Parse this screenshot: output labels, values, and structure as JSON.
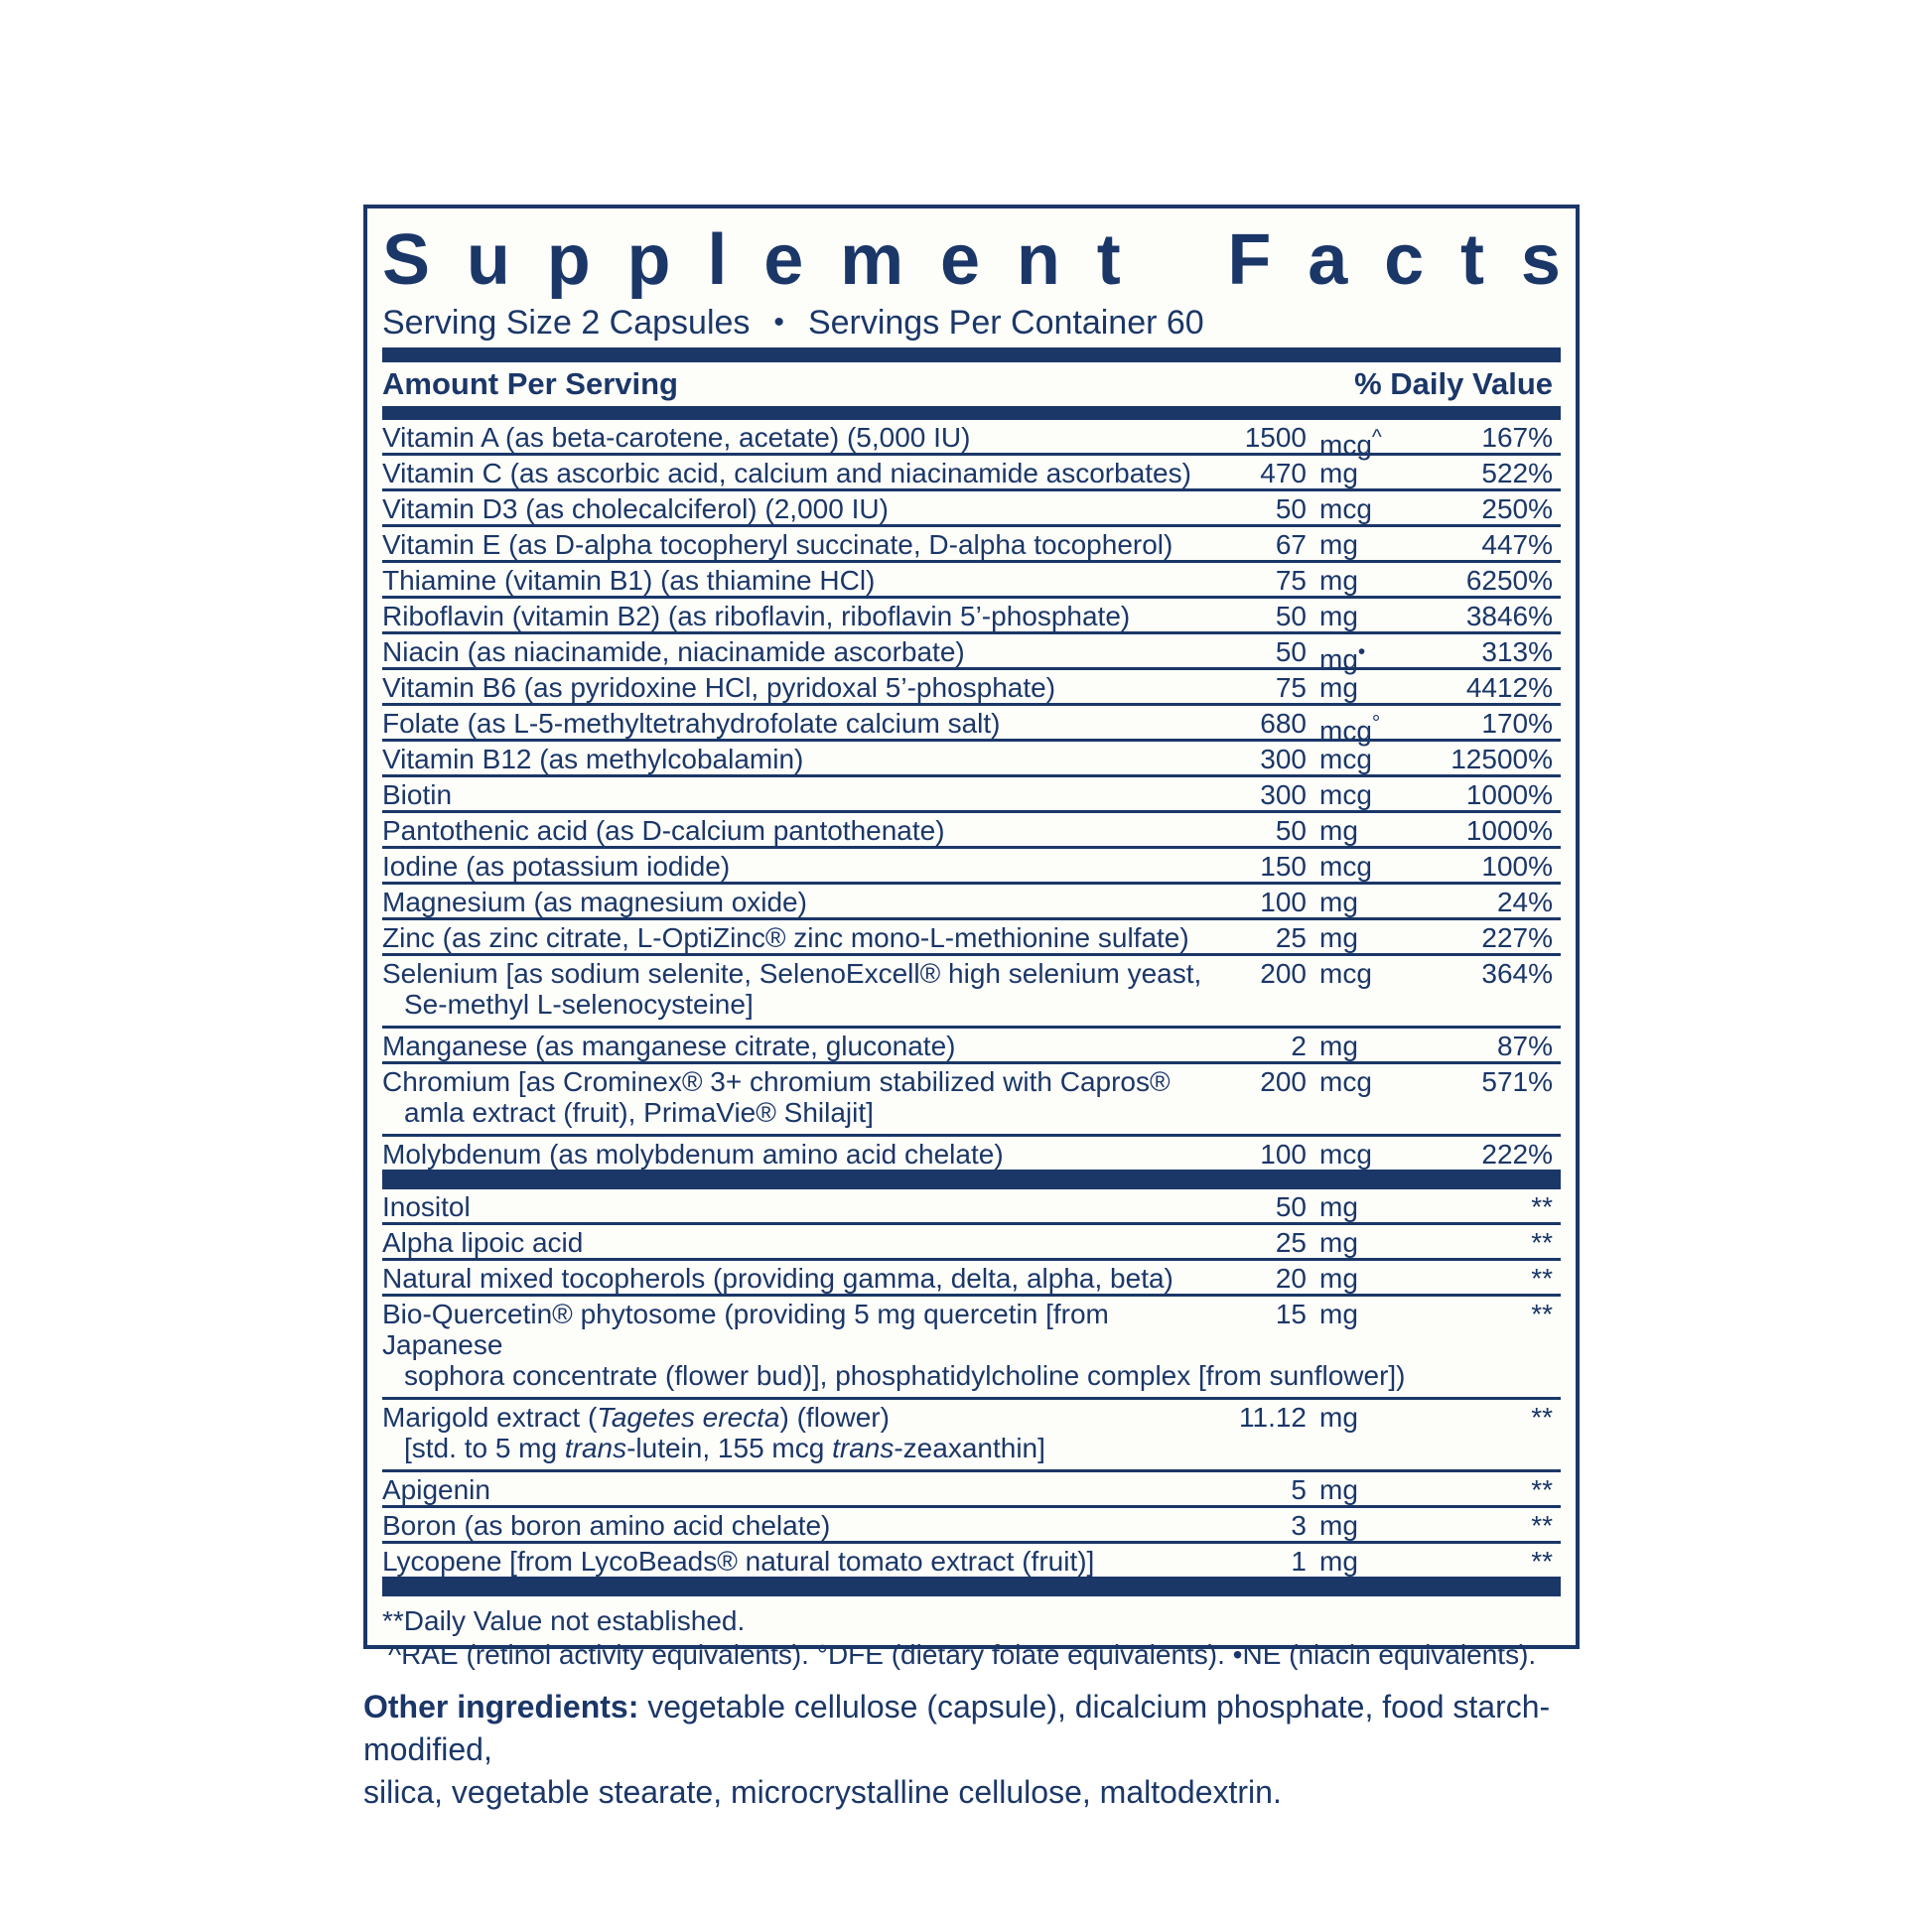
{
  "colors": {
    "navy": "#1b3768",
    "paper": "#fdfdfa"
  },
  "label": {
    "title": "Supplement Facts",
    "serving": {
      "size_text": "Serving Size 2 Capsules",
      "bullet": "•",
      "per_container_text": "Servings Per Container 60"
    },
    "header": {
      "left": "Amount Per Serving",
      "right": "% Daily Value"
    },
    "rows": [
      {
        "name": "Vitamin A (as beta-carotene, acetate) (5,000 IU)",
        "amount": "1500",
        "unit": "mcg",
        "mark": "^",
        "dv": "167%"
      },
      {
        "name": "Vitamin C (as ascorbic acid, calcium and niacinamide ascorbates)",
        "amount": "470",
        "unit": "mg",
        "dv": "522%"
      },
      {
        "name": "Vitamin D3 (as cholecalciferol) (2,000 IU)",
        "amount": "50",
        "unit": "mcg",
        "dv": "250%"
      },
      {
        "name": "Vitamin E (as D-alpha tocopheryl succinate, D-alpha tocopherol)",
        "amount": "67",
        "unit": "mg",
        "dv": "447%"
      },
      {
        "name": "Thiamine (vitamin B1) (as thiamine HCl)",
        "amount": "75",
        "unit": "mg",
        "dv": "6250%"
      },
      {
        "name": "Riboflavin (vitamin B2) (as riboflavin, riboflavin 5’-phosphate)",
        "amount": "50",
        "unit": "mg",
        "dv": "3846%"
      },
      {
        "name": "Niacin (as niacinamide, niacinamide ascorbate)",
        "amount": "50",
        "unit": "mg",
        "mark": "•",
        "dv": "313%"
      },
      {
        "name": "Vitamin B6 (as pyridoxine HCl, pyridoxal 5’-phosphate)",
        "amount": "75",
        "unit": "mg",
        "dv": "4412%"
      },
      {
        "name": "Folate (as L-5-methyltetrahydrofolate calcium salt)",
        "amount": "680",
        "unit": "mcg",
        "mark": "°",
        "dv": "170%"
      },
      {
        "name": "Vitamin B12 (as methylcobalamin)",
        "amount": "300",
        "unit": "mcg",
        "dv": "12500%"
      },
      {
        "name": "Biotin",
        "amount": "300",
        "unit": "mcg",
        "dv": "1000%"
      },
      {
        "name": "Pantothenic acid (as D-calcium pantothenate)",
        "amount": "50",
        "unit": "mg",
        "dv": "1000%"
      },
      {
        "name": "Iodine (as potassium iodide)",
        "amount": "150",
        "unit": "mcg",
        "dv": "100%"
      },
      {
        "name": "Magnesium (as magnesium oxide)",
        "amount": "100",
        "unit": "mg",
        "dv": "24%"
      },
      {
        "name": "Zinc (as zinc citrate, L-OptiZinc® zinc mono-L-methionine sulfate)",
        "amount": "25",
        "unit": "mg",
        "dv": "227%"
      },
      {
        "name": "Selenium [as sodium selenite, SelenoExcell® high selenium yeast,",
        "name2": "Se-methyl L-selenocysteine]",
        "amount": "200",
        "unit": "mcg",
        "dv": "364%"
      },
      {
        "name": "Manganese (as manganese citrate, gluconate)",
        "amount": "2",
        "unit": "mg",
        "dv": "87%"
      },
      {
        "name": "Chromium [as Crominex® 3+ chromium stabilized with Capros®",
        "name2": "amla extract (fruit), PrimaVie® Shilajit]",
        "amount": "200",
        "unit": "mcg",
        "dv": "571%"
      },
      {
        "name": "Molybdenum (as molybdenum amino acid chelate)",
        "amount": "100",
        "unit": "mcg",
        "dv": "222%"
      }
    ],
    "rows2": [
      {
        "name": "Inositol",
        "amount": "50",
        "unit": "mg",
        "dv": "**"
      },
      {
        "name": "Alpha lipoic acid",
        "amount": "25",
        "unit": "mg",
        "dv": "**"
      },
      {
        "name": "Natural mixed tocopherols (providing gamma, delta, alpha, beta)",
        "amount": "20",
        "unit": "mg",
        "dv": "**"
      },
      {
        "name": "Bio-Quercetin® phytosome (providing 5 mg quercetin [from Japanese",
        "name2": "sophora concentrate (flower bud)], phosphatidylcholine complex [from sunflower])",
        "amount": "15",
        "unit": "mg",
        "dv": "**"
      },
      {
        "name": "Marigold extract (*Tagetes erecta*) (flower)",
        "name2": "[std. to 5 mg *trans*-lutein, 155 mcg *trans*-zeaxanthin]",
        "amount": "11.12",
        "unit": "mg",
        "dv": "**"
      },
      {
        "name": "Apigenin",
        "amount": "5",
        "unit": "mg",
        "dv": "**"
      },
      {
        "name": "Boron (as boron amino acid chelate)",
        "amount": "3",
        "unit": "mg",
        "dv": "**"
      },
      {
        "name": "Lycopene [from LycoBeads® natural tomato extract (fruit)]",
        "amount": "1",
        "unit": "mg",
        "dv": "**"
      }
    ],
    "footnotes": [
      "**Daily Value not established.",
      "^RAE (retinol activity equivalents). °DFE (dietary folate equivalents). •NE (niacin equivalents)."
    ]
  },
  "other_ingredients": {
    "lines": [
      "**Other ingredients:** vegetable cellulose (capsule), dicalcium phosphate, food starch-modified,",
      "silica, vegetable stearate, microcrystalline cellulose, maltodextrin."
    ]
  }
}
